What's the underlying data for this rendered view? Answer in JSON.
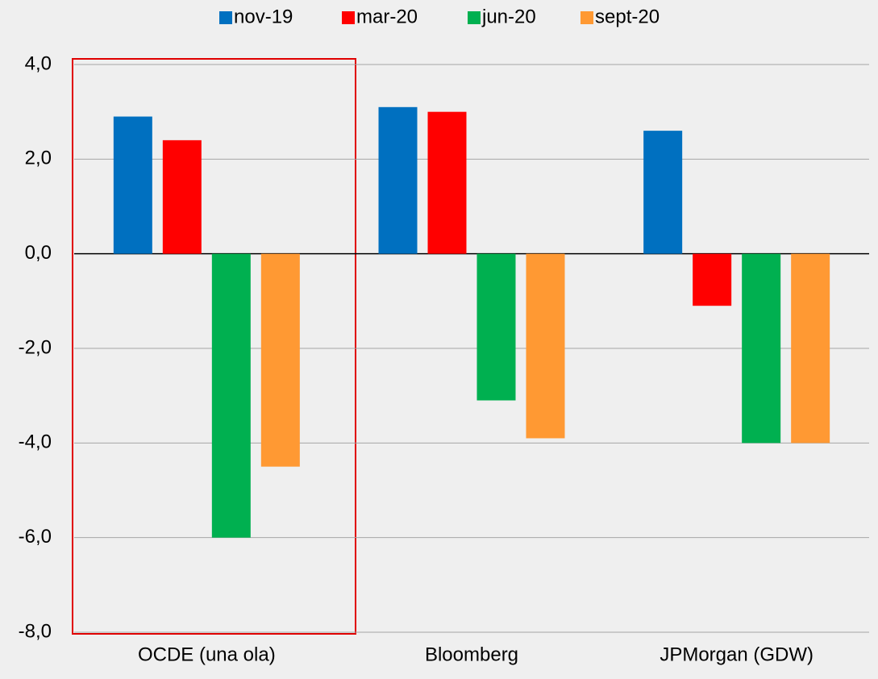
{
  "chart_data": {
    "type": "bar",
    "categories": [
      "OCDE (una ola)",
      "Bloomberg",
      "JPMorgan (GDW)"
    ],
    "series": [
      {
        "name": "nov-19",
        "color": "#0070c0",
        "values": [
          2.9,
          3.1,
          2.6
        ]
      },
      {
        "name": "mar-20",
        "color": "#ff0000",
        "values": [
          2.4,
          3.0,
          -1.1
        ]
      },
      {
        "name": "jun-20",
        "color": "#00b050",
        "values": [
          -6.0,
          -3.1,
          -4.0
        ]
      },
      {
        "name": "sept-20",
        "color": "#ff9933",
        "values": [
          -4.5,
          -3.9,
          -4.0
        ]
      }
    ],
    "ylim": [
      -8,
      4
    ],
    "yticks": [
      {
        "value": -8,
        "label": "-8,0"
      },
      {
        "value": -6,
        "label": "-6,0"
      },
      {
        "value": -4,
        "label": "-4,0"
      },
      {
        "value": -2,
        "label": "-2,0"
      },
      {
        "value": 0,
        "label": "0,0"
      },
      {
        "value": 2,
        "label": "2,0"
      },
      {
        "value": 4,
        "label": "4,0"
      }
    ],
    "grid": true,
    "legend": "top"
  }
}
